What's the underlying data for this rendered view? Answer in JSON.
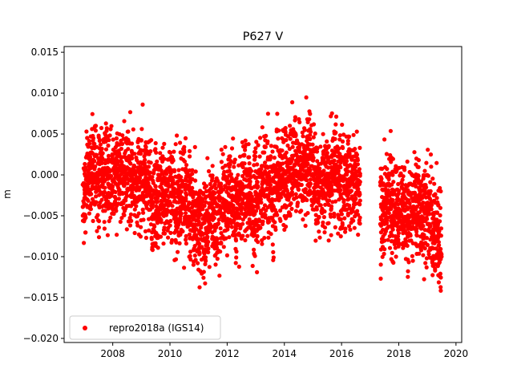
{
  "chart_data": {
    "type": "scatter",
    "title": "P627 V",
    "xlabel": "",
    "ylabel": "m",
    "xlim": [
      2006.3,
      2020.2
    ],
    "ylim": [
      -0.0205,
      0.0157
    ],
    "xticks": [
      2008,
      2010,
      2012,
      2014,
      2016,
      2018,
      2020
    ],
    "xtick_labels": [
      "2008",
      "2010",
      "2012",
      "2014",
      "2016",
      "2018",
      "2020"
    ],
    "yticks": [
      -0.02,
      -0.015,
      -0.01,
      -0.005,
      0.0,
      0.005,
      0.01,
      0.015
    ],
    "ytick_labels": [
      "−0.020",
      "−0.015",
      "−0.010",
      "−0.005",
      "0.000",
      "0.005",
      "0.010",
      "0.015"
    ],
    "grid": false,
    "legend_position": "lower-left",
    "series": [
      {
        "name": "repro2018a (IGS14)",
        "color": "#ff0000",
        "marker": "circle",
        "x": [
          2006.95,
          2007.05,
          2007.15,
          2007.25,
          2007.35,
          2007.45,
          2007.55,
          2007.65,
          2007.75,
          2007.85,
          2007.95,
          2008.05,
          2008.15,
          2008.25,
          2008.35,
          2008.45,
          2008.55,
          2008.65,
          2008.75,
          2008.85,
          2008.95,
          2009.05,
          2009.15,
          2009.25,
          2009.35,
          2009.45,
          2009.55,
          2009.65,
          2009.75,
          2009.85,
          2009.95,
          2010.05,
          2010.15,
          2010.25,
          2010.35,
          2010.45,
          2010.55,
          2010.65,
          2010.75,
          2010.85,
          2010.95,
          2011.05,
          2011.15,
          2011.25,
          2011.35,
          2011.45,
          2011.55,
          2011.65,
          2011.75,
          2011.85,
          2011.95,
          2012.05,
          2012.15,
          2012.25,
          2012.35,
          2012.45,
          2012.55,
          2012.65,
          2012.75,
          2012.85,
          2012.95,
          2013.05,
          2013.15,
          2013.25,
          2013.35,
          2013.45,
          2013.55,
          2013.65,
          2013.75,
          2013.85,
          2013.95,
          2014.05,
          2014.15,
          2014.25,
          2014.35,
          2014.45,
          2014.55,
          2014.65,
          2014.75,
          2014.85,
          2014.95,
          2015.05,
          2015.15,
          2015.25,
          2015.35,
          2015.45,
          2015.55,
          2015.65,
          2015.75,
          2015.85,
          2015.95,
          2016.05,
          2016.15,
          2016.25,
          2016.35,
          2016.45,
          2016.55,
          2017.35,
          2017.45,
          2017.55,
          2017.65,
          2017.75,
          2017.85,
          2017.95,
          2018.05,
          2018.15,
          2018.25,
          2018.35,
          2018.45,
          2018.55,
          2018.65,
          2018.75,
          2018.85,
          2018.95,
          2019.05,
          2019.15,
          2019.25,
          2019.35,
          2019.4
        ],
        "y": [
          -0.002,
          -0.001,
          0.0,
          0.001,
          0.0,
          -0.001,
          0.0,
          0.001,
          0.0,
          -0.001,
          0.0,
          0.0,
          0.001,
          0.0,
          -0.001,
          0.001,
          0.0,
          0.0,
          -0.001,
          -0.001,
          0.0,
          0.0,
          -0.001,
          -0.002,
          -0.003,
          -0.002,
          -0.003,
          -0.002,
          -0.002,
          -0.003,
          -0.002,
          -0.003,
          -0.004,
          -0.004,
          -0.003,
          -0.002,
          -0.003,
          -0.004,
          -0.005,
          -0.005,
          -0.006,
          -0.006,
          -0.007,
          -0.006,
          -0.005,
          -0.004,
          -0.005,
          -0.005,
          -0.004,
          -0.003,
          -0.003,
          -0.002,
          -0.003,
          -0.004,
          -0.003,
          -0.002,
          -0.001,
          -0.002,
          -0.003,
          -0.004,
          -0.003,
          -0.003,
          -0.002,
          -0.001,
          -0.001,
          -0.002,
          -0.003,
          -0.001,
          0.0,
          0.001,
          0.0,
          0.0,
          0.001,
          0.001,
          0.002,
          0.001,
          0.0,
          0.001,
          0.002,
          0.002,
          0.0,
          -0.001,
          -0.002,
          -0.001,
          0.0,
          0.0,
          -0.001,
          0.0,
          0.001,
          0.0,
          -0.001,
          0.0,
          0.0,
          -0.001,
          -0.001,
          -0.002,
          -0.002,
          -0.005,
          -0.004,
          -0.004,
          -0.003,
          -0.004,
          -0.004,
          -0.005,
          -0.004,
          -0.004,
          -0.005,
          -0.005,
          -0.004,
          -0.004,
          -0.003,
          -0.004,
          -0.005,
          -0.005,
          -0.005,
          -0.006,
          -0.007,
          -0.008,
          -0.008
        ],
        "y_spread": 0.005
      }
    ]
  }
}
